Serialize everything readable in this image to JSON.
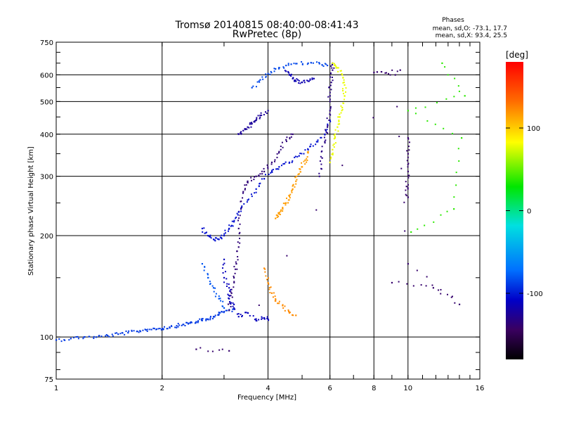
{
  "chart_data": {
    "type": "scatter",
    "title": "Tromsø 20140815 08:40:00-08:41:43",
    "subtitle": "RwPretec (8p)",
    "xlabel": "Frequency [MHz]",
    "ylabel": "Stationary phase Virtual Height [km]",
    "x_scale": "log",
    "y_scale": "log",
    "xlim": [
      1,
      16
    ],
    "ylim": [
      75,
      750
    ],
    "x_ticks": [
      1,
      2,
      4,
      6,
      8,
      10,
      16
    ],
    "x_tick_labels": [
      "1",
      "2",
      "4",
      "6",
      "8",
      "10",
      "16"
    ],
    "y_ticks": [
      75,
      100,
      200,
      300,
      400,
      500,
      600,
      750
    ],
    "y_tick_labels": [
      "75",
      "100",
      "200",
      "300",
      "400",
      "500",
      "600",
      "750"
    ],
    "grid": true,
    "stats": {
      "header": "Phases",
      "o_line": "mean, sd,O: -73.1, 17.7",
      "x_line": "mean, sd,X:  93.4, 25.5"
    },
    "colorbar": {
      "label": "[deg]",
      "range": [
        -180,
        180
      ],
      "ticks": [
        100,
        0,
        -100
      ],
      "tick_labels": [
        "100",
        "0",
        "-100"
      ]
    },
    "traces": [
      {
        "phase": -80,
        "points": [
          [
            1.0,
            98
          ],
          [
            1.1,
            99
          ],
          [
            1.2,
            100
          ],
          [
            1.3,
            100
          ],
          [
            1.4,
            101
          ],
          [
            1.5,
            102
          ],
          [
            1.6,
            103
          ],
          [
            1.7,
            104
          ],
          [
            1.8,
            105
          ],
          [
            1.9,
            106
          ],
          [
            2.0,
            106
          ],
          [
            2.1,
            107
          ],
          [
            2.2,
            108
          ],
          [
            2.3,
            109
          ],
          [
            2.4,
            110
          ],
          [
            2.5,
            111
          ],
          [
            2.6,
            112
          ],
          [
            2.7,
            113
          ],
          [
            2.8,
            115
          ],
          [
            2.9,
            117
          ],
          [
            3.0,
            119
          ],
          [
            3.2,
            121
          ]
        ]
      },
      {
        "phase": -135,
        "points": [
          [
            3.1,
            120
          ],
          [
            3.15,
            135
          ],
          [
            3.2,
            150
          ],
          [
            3.25,
            165
          ],
          [
            3.3,
            185
          ],
          [
            3.3,
            210
          ],
          [
            3.35,
            240
          ],
          [
            3.4,
            270
          ],
          [
            3.5,
            290
          ],
          [
            3.7,
            300
          ],
          [
            3.9,
            310
          ],
          [
            4.1,
            330
          ],
          [
            4.3,
            355
          ],
          [
            4.5,
            385
          ],
          [
            4.7,
            400
          ]
        ]
      },
      {
        "phase": -95,
        "points": [
          [
            2.6,
            210
          ],
          [
            2.7,
            200
          ],
          [
            2.8,
            195
          ],
          [
            2.9,
            195
          ],
          [
            3.0,
            200
          ],
          [
            3.1,
            210
          ],
          [
            3.2,
            220
          ],
          [
            3.3,
            235
          ],
          [
            3.5,
            255
          ],
          [
            3.7,
            275
          ],
          [
            3.9,
            295
          ],
          [
            4.1,
            310
          ],
          [
            4.3,
            320
          ],
          [
            4.6,
            330
          ],
          [
            4.9,
            345
          ],
          [
            5.2,
            360
          ],
          [
            5.5,
            380
          ],
          [
            5.8,
            400
          ],
          [
            6.0,
            440
          ]
        ]
      },
      {
        "phase": -120,
        "points": [
          [
            3.3,
            400
          ],
          [
            3.4,
            410
          ],
          [
            3.5,
            420
          ],
          [
            3.6,
            430
          ],
          [
            3.7,
            440
          ],
          [
            3.8,
            455
          ],
          [
            4.0,
            470
          ]
        ]
      },
      {
        "phase": -75,
        "points": [
          [
            3.6,
            550
          ],
          [
            3.8,
            580
          ],
          [
            4.0,
            605
          ],
          [
            4.2,
            625
          ],
          [
            4.5,
            640
          ],
          [
            4.8,
            648
          ],
          [
            5.2,
            650
          ],
          [
            5.6,
            648
          ],
          [
            5.9,
            640
          ]
        ]
      },
      {
        "phase": -110,
        "points": [
          [
            4.5,
            615
          ],
          [
            4.6,
            600
          ],
          [
            4.7,
            585
          ],
          [
            4.8,
            575
          ],
          [
            5.0,
            570
          ],
          [
            5.2,
            575
          ],
          [
            5.4,
            585
          ]
        ]
      },
      {
        "phase": -130,
        "points": [
          [
            5.6,
            300
          ],
          [
            5.7,
            340
          ],
          [
            5.8,
            380
          ],
          [
            5.9,
            420
          ],
          [
            6.0,
            470
          ],
          [
            6.0,
            520
          ],
          [
            6.05,
            570
          ],
          [
            6.1,
            620
          ],
          [
            6.1,
            650
          ]
        ]
      },
      {
        "phase": 120,
        "points": [
          [
            4.2,
            225
          ],
          [
            4.3,
            232
          ],
          [
            4.4,
            240
          ],
          [
            4.5,
            250
          ],
          [
            4.6,
            262
          ],
          [
            4.7,
            275
          ],
          [
            4.8,
            290
          ],
          [
            4.9,
            305
          ],
          [
            5.0,
            320
          ],
          [
            5.1,
            335
          ],
          [
            5.2,
            355
          ]
        ]
      },
      {
        "phase": 85,
        "points": [
          [
            6.0,
            330
          ],
          [
            6.1,
            360
          ],
          [
            6.2,
            390
          ],
          [
            6.3,
            420
          ],
          [
            6.4,
            450
          ],
          [
            6.5,
            480
          ],
          [
            6.6,
            520
          ],
          [
            6.6,
            560
          ],
          [
            6.5,
            600
          ],
          [
            6.3,
            630
          ],
          [
            6.1,
            650
          ]
        ]
      },
      {
        "phase": -105,
        "points": [
          [
            3.0,
            170
          ],
          [
            3.0,
            150
          ],
          [
            3.1,
            140
          ],
          [
            3.1,
            130
          ],
          [
            3.2,
            125
          ],
          [
            3.3,
            115
          ],
          [
            3.5,
            118
          ],
          [
            3.7,
            112
          ],
          [
            3.9,
            114
          ],
          [
            4.0,
            113
          ]
        ]
      },
      {
        "phase": 125,
        "points": [
          [
            3.9,
            160
          ],
          [
            4.0,
            145
          ],
          [
            4.1,
            135
          ],
          [
            4.2,
            128
          ],
          [
            4.4,
            124
          ],
          [
            4.6,
            118
          ],
          [
            4.8,
            116
          ]
        ]
      },
      {
        "phase": -70,
        "points": [
          [
            2.6,
            165
          ],
          [
            2.7,
            150
          ],
          [
            2.8,
            140
          ],
          [
            2.9,
            130
          ],
          [
            3.0,
            122
          ]
        ]
      },
      {
        "phase": -140,
        "points": [
          [
            10.0,
            390
          ],
          [
            10.0,
            350
          ],
          [
            10.0,
            310
          ],
          [
            9.9,
            280
          ],
          [
            10.0,
            260
          ]
        ]
      },
      {
        "phase": 40,
        "points": [
          [
            12.5,
            650
          ],
          [
            14.5,
            520
          ],
          [
            10.0,
            470
          ],
          [
            14.2,
            390
          ],
          [
            13.5,
            240
          ],
          [
            10.2,
            205
          ]
        ]
      },
      {
        "phase": -140,
        "points": [
          [
            2.5,
            92
          ],
          [
            3.1,
            91
          ],
          [
            9.5,
            620
          ],
          [
            8.0,
            610
          ],
          [
            9.2,
            600
          ],
          [
            10.0,
            165
          ],
          [
            14.0,
            125
          ],
          [
            11.8,
            140
          ],
          [
            9.0,
            145
          ]
        ]
      }
    ]
  }
}
